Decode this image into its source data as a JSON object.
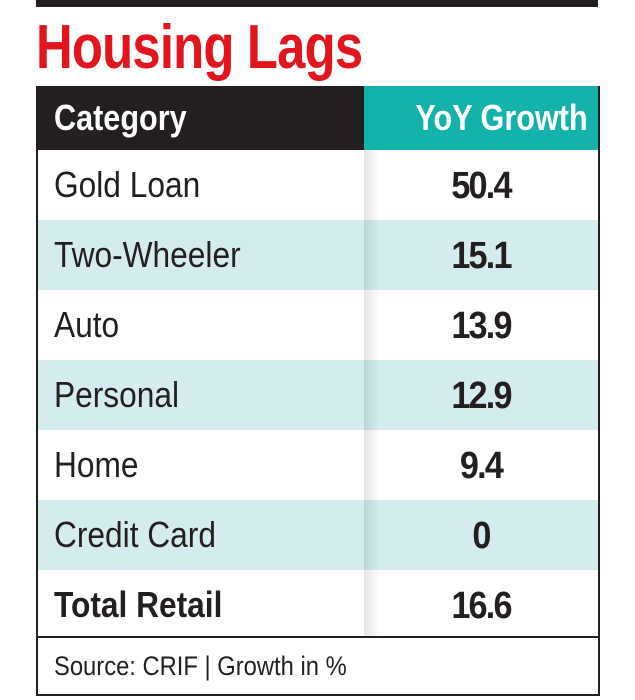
{
  "title": "Housing Lags",
  "chart_data": {
    "type": "table",
    "title": "Housing Lags",
    "columns": [
      "Category",
      "YoY Growth"
    ],
    "rows": [
      {
        "category": "Gold Loan",
        "value": "50.4"
      },
      {
        "category": "Two-Wheeler",
        "value": "15.1"
      },
      {
        "category": "Auto",
        "value": "13.9"
      },
      {
        "category": "Personal",
        "value": "12.9"
      },
      {
        "category": "Home",
        "value": "9.4"
      },
      {
        "category": "Credit Card",
        "value": "0"
      },
      {
        "category": "Total Retail",
        "value": "16.6"
      }
    ],
    "source": "Source: CRIF | Growth in %"
  },
  "colors": {
    "title": "#e3141b",
    "header_left": "#231f20",
    "header_right": "#13b3ab",
    "row_alt": "#d4ecee"
  }
}
